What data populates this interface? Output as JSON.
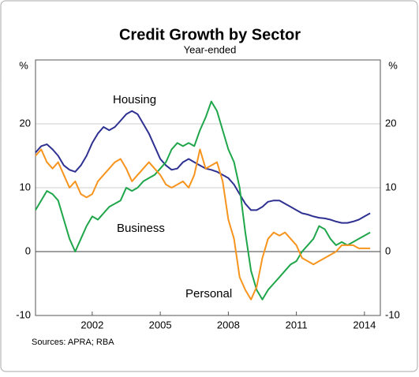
{
  "chart_data": {
    "type": "line",
    "title": "Credit Growth by Sector",
    "subtitle": "Year-ended",
    "y_unit": "%",
    "y2_unit": "%",
    "source": "Sources: APRA; RBA",
    "x": [
      1999.5,
      1999.75,
      2000,
      2000.25,
      2000.5,
      2000.75,
      2001,
      2001.25,
      2001.5,
      2001.75,
      2002,
      2002.25,
      2002.5,
      2002.75,
      2003,
      2003.25,
      2003.5,
      2003.75,
      2004,
      2004.25,
      2004.5,
      2004.75,
      2005,
      2005.25,
      2005.5,
      2005.75,
      2006,
      2006.25,
      2006.5,
      2006.75,
      2007,
      2007.25,
      2007.5,
      2007.75,
      2008,
      2008.25,
      2008.5,
      2008.75,
      2009,
      2009.25,
      2009.5,
      2009.75,
      2010,
      2010.25,
      2010.5,
      2010.75,
      2011,
      2011.25,
      2011.5,
      2011.75,
      2012,
      2012.25,
      2012.5,
      2012.75,
      2013,
      2013.25,
      2013.5,
      2013.75,
      2014,
      2014.25
    ],
    "series": [
      {
        "name": "Housing",
        "color": "#2e3192",
        "values": [
          15.5,
          16.5,
          16.8,
          16,
          15,
          13.5,
          12.8,
          12.5,
          13.5,
          15,
          17,
          18.5,
          19.5,
          19,
          19.5,
          20.5,
          21.5,
          22,
          21.5,
          20,
          18.5,
          16.5,
          14.5,
          13.5,
          12.8,
          13,
          14,
          14.5,
          14,
          13.5,
          13,
          12.8,
          12.5,
          12,
          11.5,
          10.5,
          9,
          7.5,
          6.5,
          6.5,
          7,
          7.8,
          8,
          8,
          7.5,
          7,
          6.5,
          6,
          5.8,
          5.5,
          5.3,
          5.2,
          5,
          4.7,
          4.5,
          4.5,
          4.7,
          5,
          5.5,
          6
        ]
      },
      {
        "name": "Business",
        "color": "#1fa64a",
        "values": [
          6.5,
          8,
          9.5,
          9,
          8,
          5,
          2,
          0,
          2,
          4,
          5.5,
          5,
          6,
          7,
          7.5,
          8,
          10,
          9.5,
          10,
          11,
          11.5,
          12,
          13,
          14,
          16,
          17,
          16.5,
          17,
          16.5,
          19,
          21,
          23.5,
          22,
          19,
          16,
          14,
          10,
          3,
          -3,
          -6,
          -7.5,
          -6,
          -5,
          -4,
          -3,
          -2,
          -1.5,
          0,
          1,
          2,
          4,
          3.5,
          2,
          1,
          1.5,
          1,
          1.5,
          2,
          2.5,
          3
        ]
      },
      {
        "name": "Personal",
        "color": "#f7941d",
        "values": [
          15,
          16,
          14,
          13,
          14,
          12,
          10,
          11,
          9,
          8.5,
          9,
          11,
          12,
          13,
          14,
          14.5,
          13,
          11,
          12,
          13,
          14,
          13,
          12,
          10.5,
          10,
          10.5,
          11,
          10,
          12,
          16,
          13,
          13.5,
          14,
          11,
          5,
          2,
          -4,
          -6,
          -7.5,
          -5.5,
          -1,
          2,
          3,
          2.5,
          3,
          2,
          1,
          -1,
          -1.5,
          -2,
          -1.5,
          -1,
          -0.5,
          0,
          1,
          1,
          1,
          0.5,
          0.5,
          0.5
        ]
      }
    ],
    "xlim": [
      1999.5,
      2014.7
    ],
    "xticks": [
      2002,
      2005,
      2008,
      2011,
      2014
    ],
    "ylim": [
      -10,
      30
    ],
    "yticks": [
      -10,
      0,
      10,
      20
    ],
    "y2lim": [
      -10,
      30
    ],
    "y2ticks": [
      -10,
      0,
      10,
      20
    ],
    "grid": true
  }
}
